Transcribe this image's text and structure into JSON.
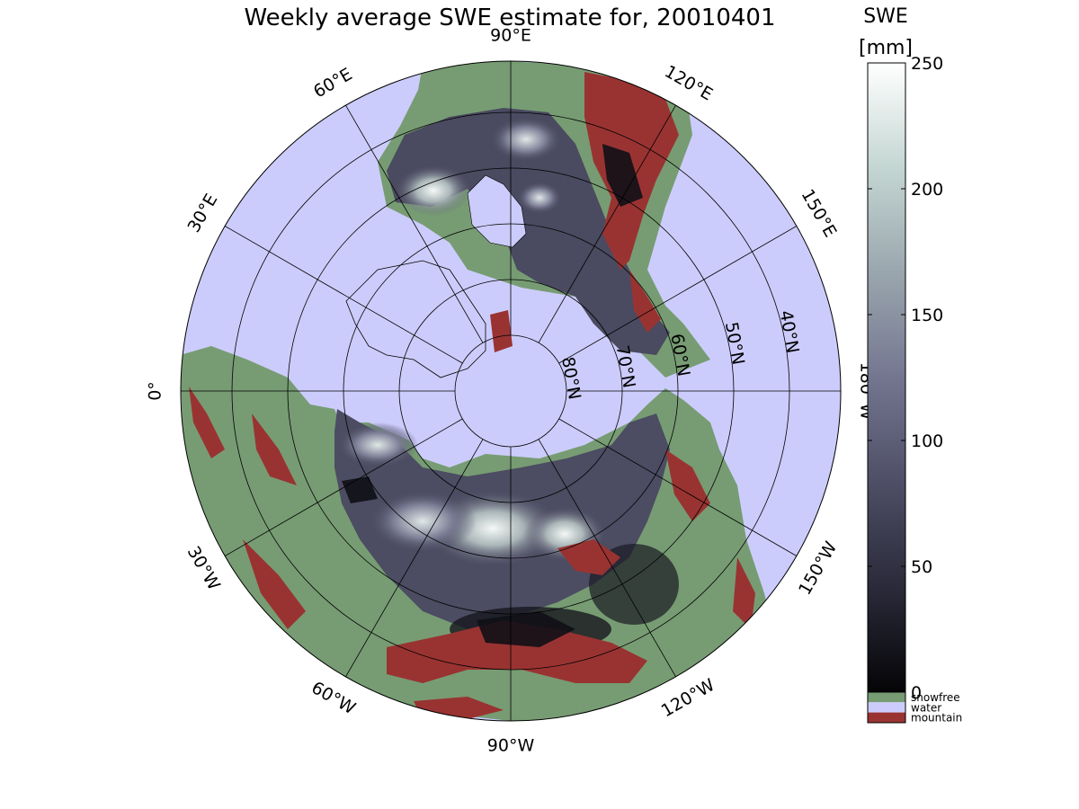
{
  "title": "Weekly average SWE estimate for, 20010401",
  "colorbar": {
    "title_line1": "SWE",
    "title_line2": "[mm]",
    "range": [
      0,
      250
    ],
    "ticks": [
      "0",
      "50",
      "100",
      "150",
      "200",
      "250"
    ],
    "gradient": [
      "#050507",
      "#2a2a3a",
      "#4e4e66",
      "#747690",
      "#9aa6ae",
      "#c4d6d2",
      "#ffffff"
    ]
  },
  "legend": [
    {
      "label": "snowfree",
      "color": "#779c73"
    },
    {
      "label": "water",
      "color": "#ccccfc"
    },
    {
      "label": "mountain",
      "color": "#993332"
    }
  ],
  "map": {
    "projection": "north polar stereographic",
    "ocean_color": "#ccccfc",
    "lon_labels": [
      {
        "text": "90°W",
        "lon": -90
      },
      {
        "text": "120°W",
        "lon": -120
      },
      {
        "text": "150°W",
        "lon": -150
      },
      {
        "text": "180°W",
        "lon": 180
      },
      {
        "text": "150°E",
        "lon": 150
      },
      {
        "text": "120°E",
        "lon": 120
      },
      {
        "text": "90°E",
        "lon": 90
      },
      {
        "text": "60°E",
        "lon": 60
      },
      {
        "text": "30°E",
        "lon": 30
      },
      {
        "text": "0°",
        "lon": 0
      },
      {
        "text": "30°W",
        "lon": -30
      },
      {
        "text": "60°W",
        "lon": -60
      }
    ],
    "lat_labels": [
      {
        "text": "80°N",
        "lat": 80
      },
      {
        "text": "70°N",
        "lat": 70
      },
      {
        "text": "60°N",
        "lat": 60
      },
      {
        "text": "50°N",
        "lat": 50
      },
      {
        "text": "40°N",
        "lat": 40
      }
    ]
  }
}
